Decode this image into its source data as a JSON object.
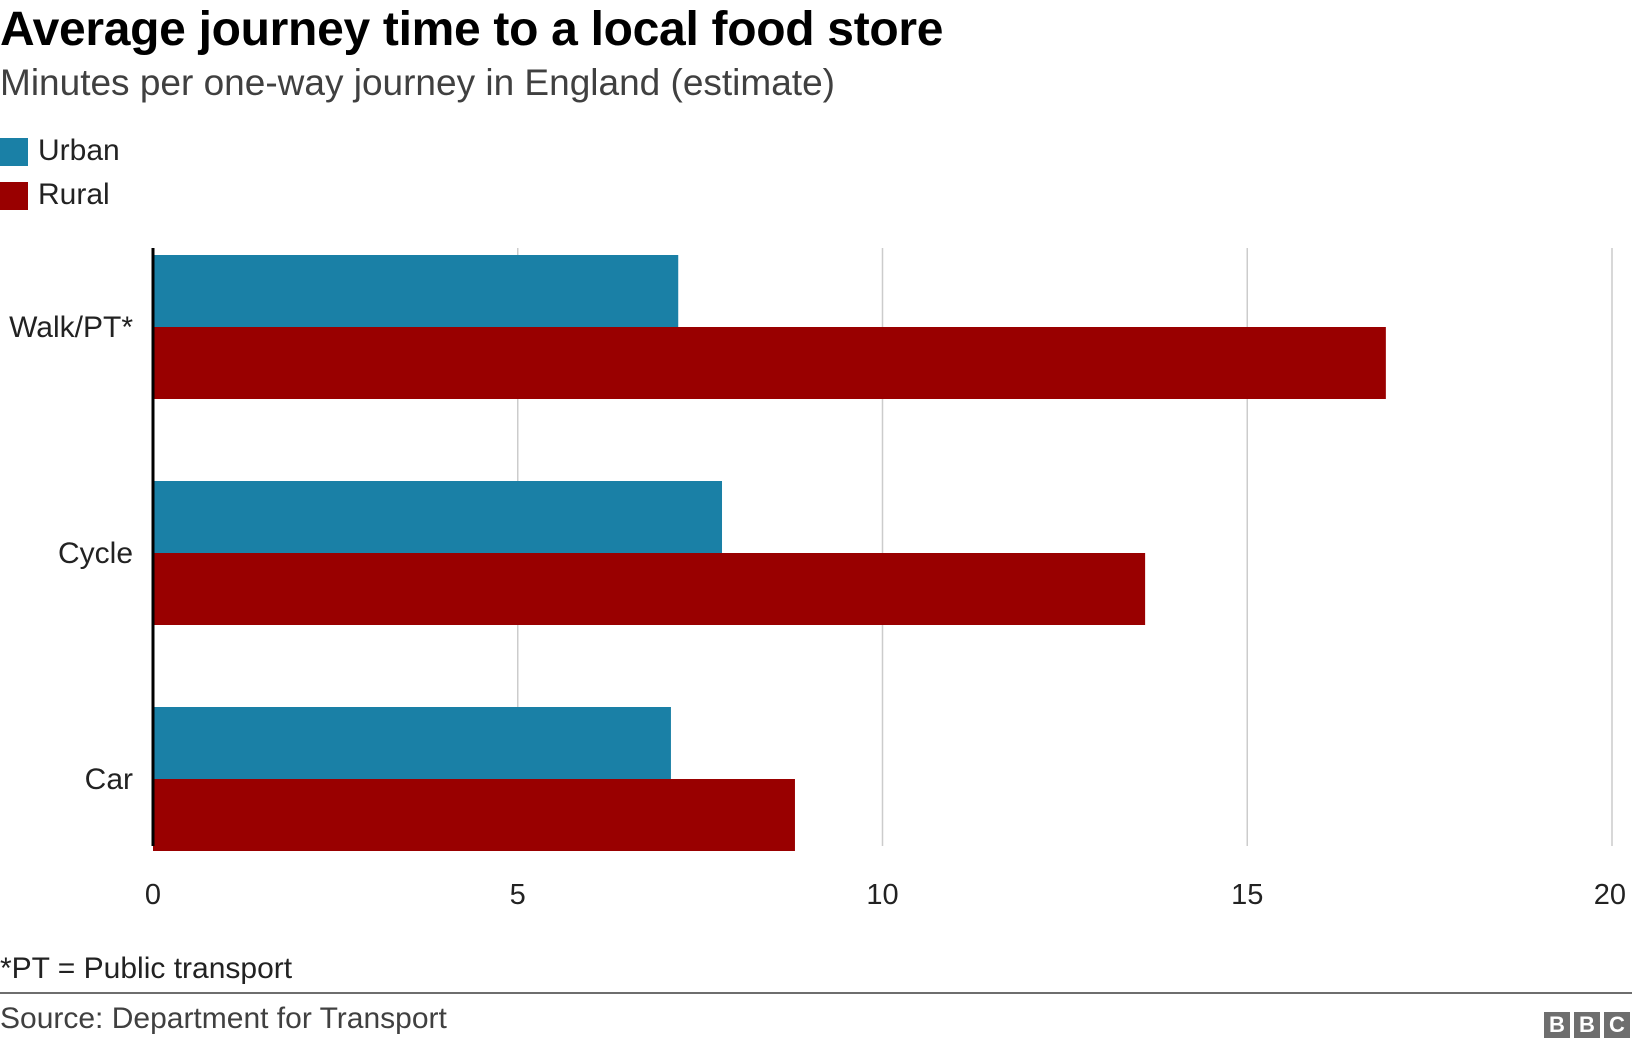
{
  "title": "Average journey time to a local food store",
  "subtitle": "Minutes per one-way journey in England (estimate)",
  "legend": {
    "items": [
      {
        "label": "Urban",
        "color": "#1a80a6"
      },
      {
        "label": "Rural",
        "color": "#990000"
      }
    ]
  },
  "chart_data": {
    "type": "bar",
    "orientation": "horizontal",
    "categories": [
      "Walk/PT*",
      "Cycle",
      "Car"
    ],
    "series": [
      {
        "name": "Urban",
        "color": "#1a80a6",
        "values": [
          7.2,
          7.8,
          7.1
        ]
      },
      {
        "name": "Rural",
        "color": "#990000",
        "values": [
          16.9,
          13.6,
          8.8
        ]
      }
    ],
    "xlim": [
      0,
      20
    ],
    "xticks": [
      0,
      5,
      10,
      15,
      20
    ],
    "grid": true,
    "legend_position": "top-left"
  },
  "footnote": "*PT = Public transport",
  "source": "Source: Department for Transport",
  "logo": {
    "letters": [
      "B",
      "B",
      "C"
    ]
  }
}
